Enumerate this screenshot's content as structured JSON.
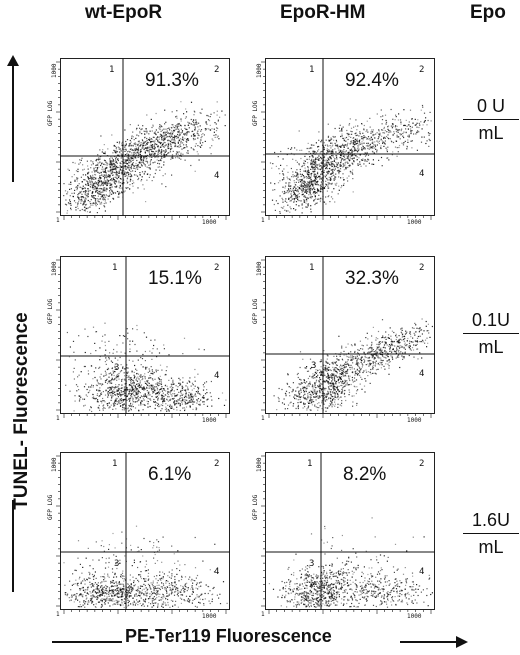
{
  "chart_data": {
    "type": "scatter",
    "columns": [
      "wt-EpoR",
      "EpoR-HM"
    ],
    "epo_header": "Epo",
    "rows": [
      {
        "epo_num": "0 U",
        "epo_den": "mL"
      },
      {
        "epo_num": "0.1U",
        "epo_den": "mL"
      },
      {
        "epo_num": "1.6U",
        "epo_den": "mL"
      }
    ],
    "ylabel": "TUNEL- Fluorescence",
    "xlabel": "PE-Ter119 Fluorescence",
    "panel_axis_label": "GFP LOG",
    "tick_top": "1000",
    "tick_right": "1000",
    "tick_origin": "1",
    "quadrant_labels": [
      "1",
      "2",
      "3",
      "4"
    ],
    "xlim": [
      1,
      1000
    ],
    "ylim": [
      1,
      1000
    ],
    "scale": "log",
    "panels": [
      {
        "column": "wt-EpoR",
        "epo": "0 U/mL",
        "percent": "91.3%",
        "q2": 91.3
      },
      {
        "column": "EpoR-HM",
        "epo": "0 U/mL",
        "percent": "92.4%",
        "q2": 92.4
      },
      {
        "column": "wt-EpoR",
        "epo": "0.1U/mL",
        "percent": "15.1%",
        "q2": 15.1
      },
      {
        "column": "EpoR-HM",
        "epo": "0.1U/mL",
        "percent": "32.3%",
        "q2": 32.3
      },
      {
        "column": "wt-EpoR",
        "epo": "1.6U/mL",
        "percent": "6.1%",
        "q2": 6.1
      },
      {
        "column": "EpoR-HM",
        "epo": "1.6U/mL",
        "percent": "8.2%",
        "q2": 8.2
      }
    ]
  }
}
